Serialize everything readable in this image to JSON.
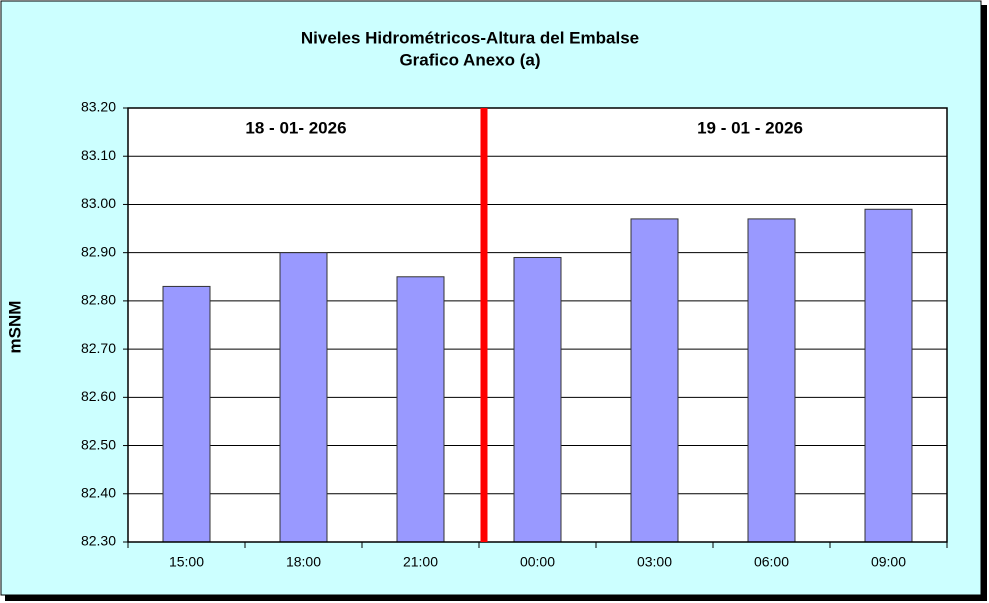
{
  "chart_data": {
    "type": "bar",
    "title": "Niveles Hidrométricos-Altura del Embalse",
    "subtitle": "Grafico Anexo (a)",
    "y_label": "mSNM",
    "annotations": [
      "18 - 01- 2026",
      "19 - 01 - 2026"
    ],
    "categories": [
      "15:00",
      "18:00",
      "21:00",
      "00:00",
      "03:00",
      "06:00",
      "09:00"
    ],
    "values": [
      82.83,
      82.9,
      82.85,
      82.89,
      82.97,
      82.97,
      82.99
    ],
    "color": "#9999ff",
    "ylim": [
      82.3,
      83.2
    ],
    "yticks": [
      {
        "value": 82.3,
        "label": "82.30"
      },
      {
        "value": 82.4,
        "label": "82.40"
      },
      {
        "value": 82.5,
        "label": "82.50"
      },
      {
        "value": 82.6,
        "label": "82.60"
      },
      {
        "value": 82.7,
        "label": "82.70"
      },
      {
        "value": 82.8,
        "label": "82.80"
      },
      {
        "value": 82.9,
        "label": "82.90"
      },
      {
        "value": 83.0,
        "label": "83.00"
      },
      {
        "value": 83.1,
        "label": "83.10"
      },
      {
        "value": 83.2,
        "label": "83.20"
      }
    ],
    "grid": true
  }
}
